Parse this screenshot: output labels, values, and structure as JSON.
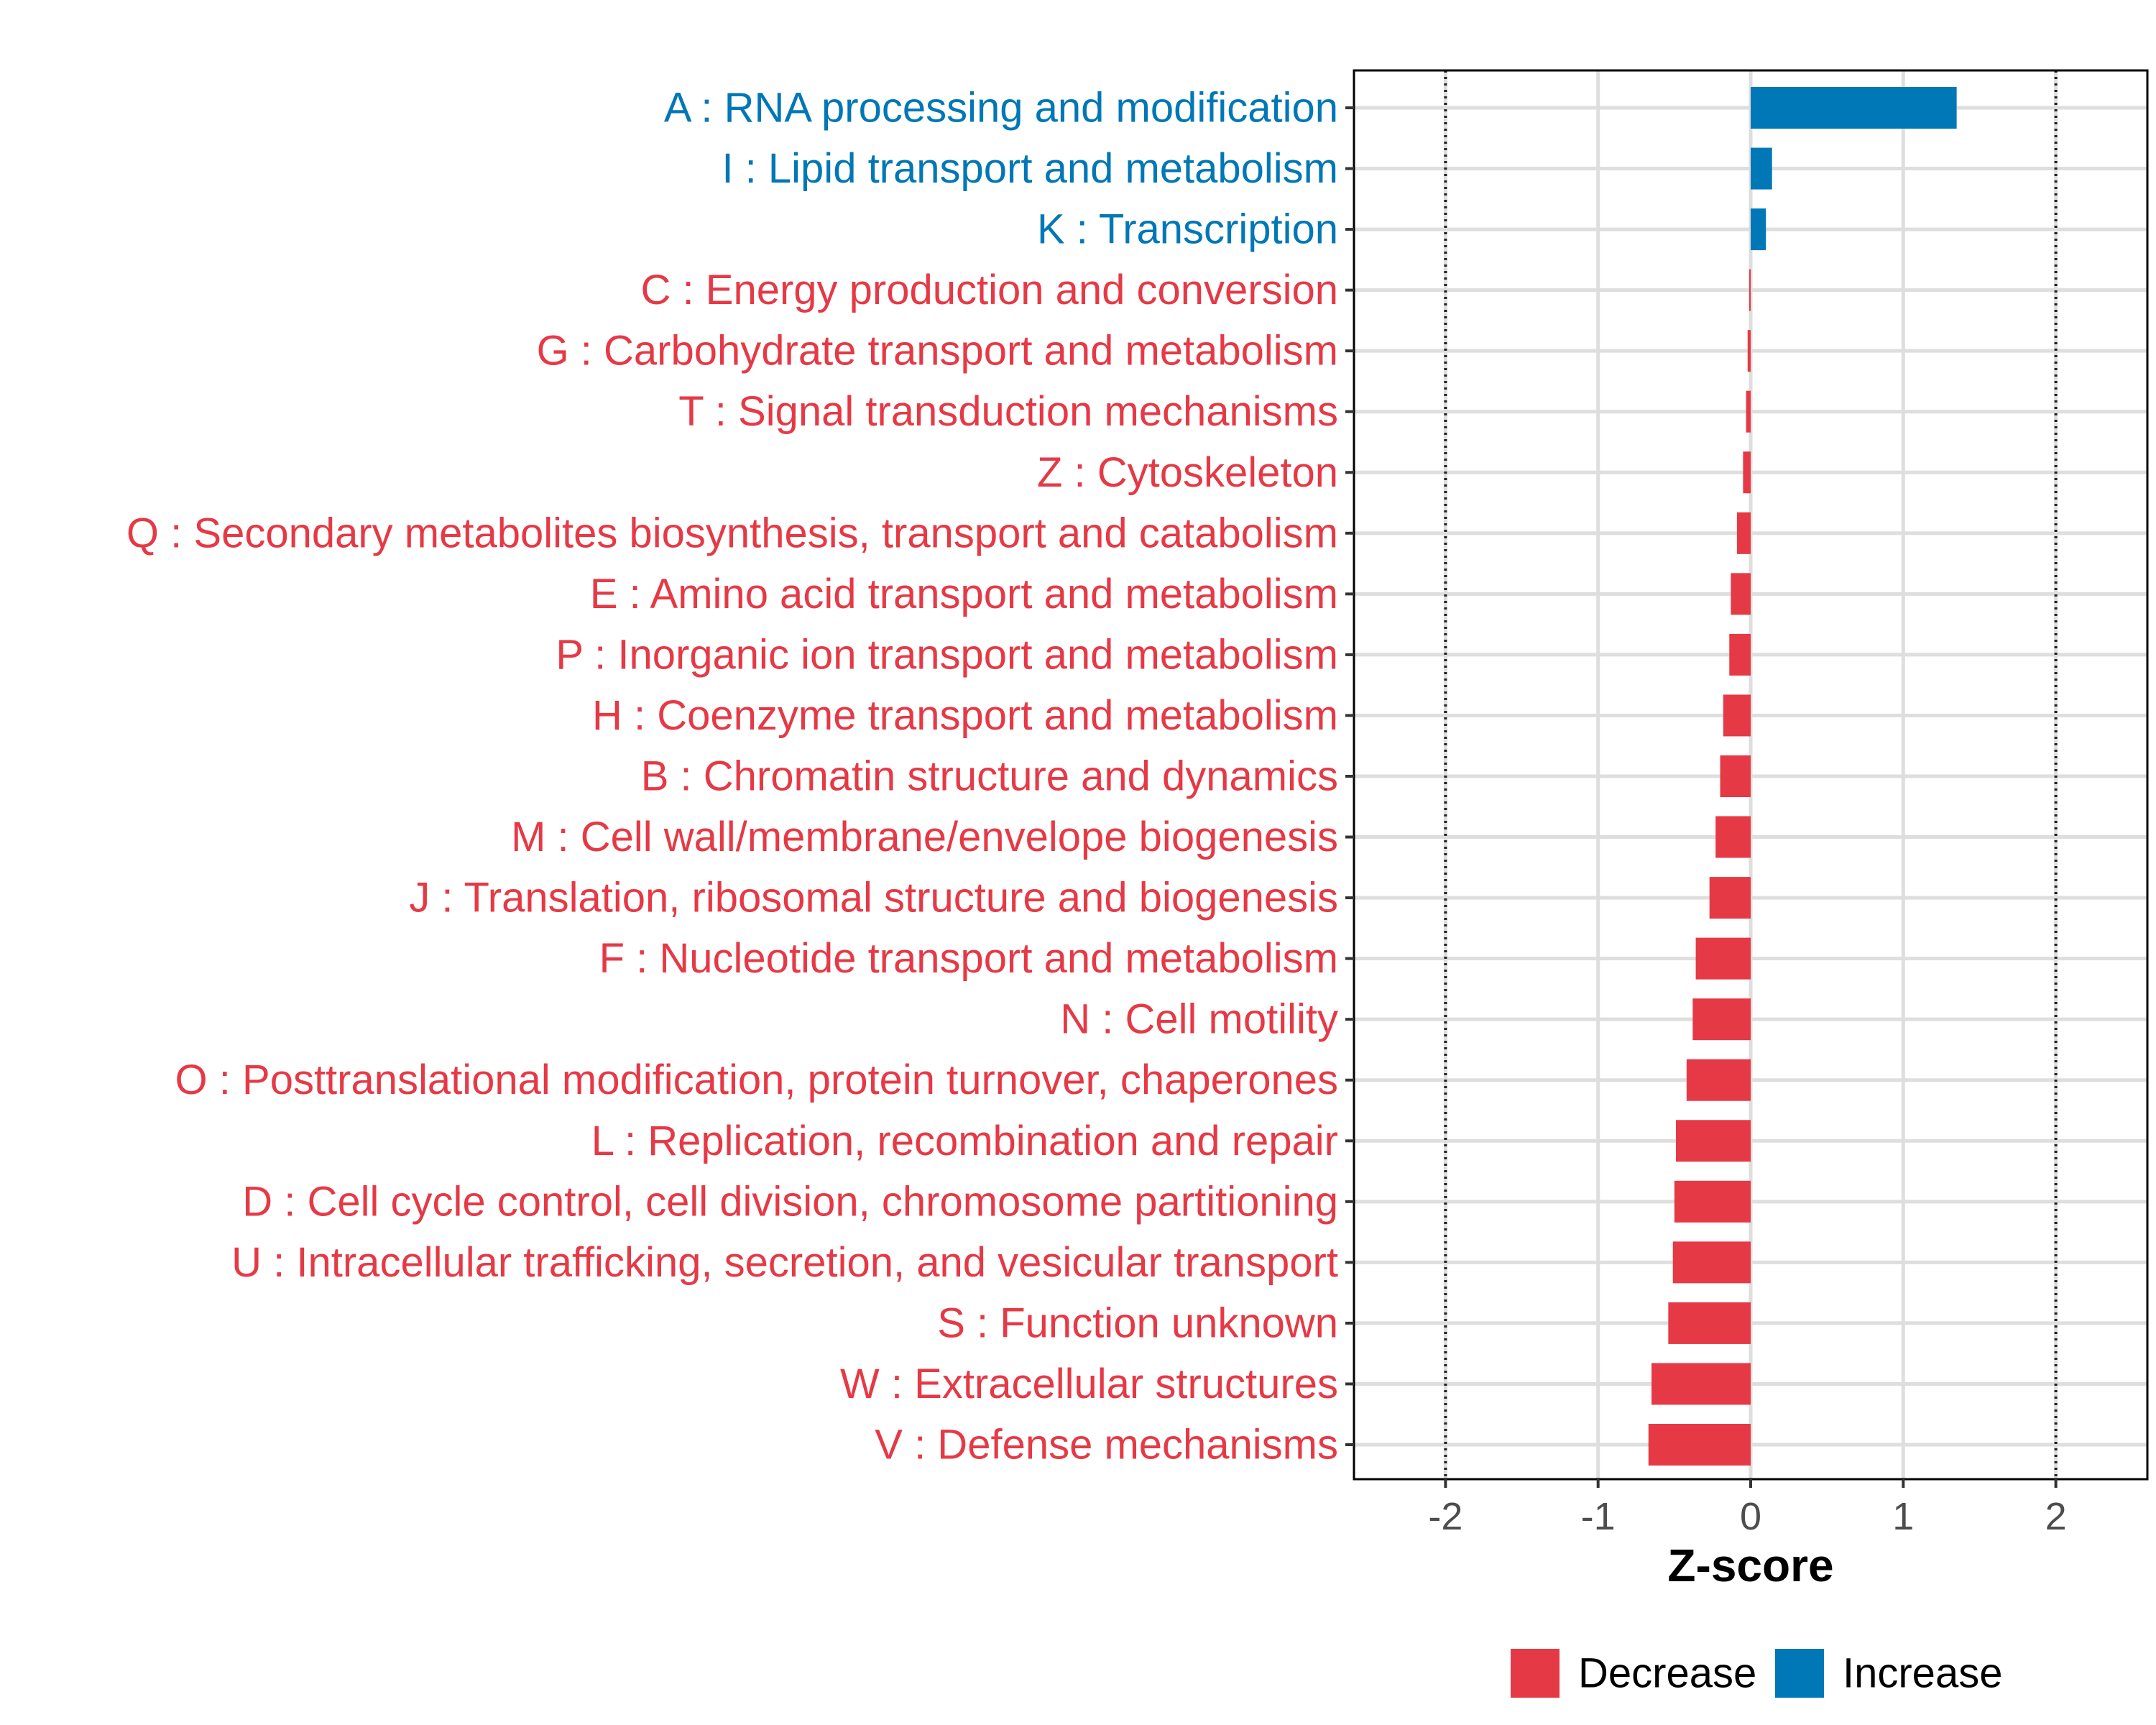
{
  "chart_data": {
    "type": "bar",
    "orientation": "horizontal",
    "xlabel": "Z-score",
    "xlim": [
      -2.6,
      2.6
    ],
    "xticks": [
      -2,
      -1,
      0,
      1,
      2
    ],
    "xtick_labels": [
      "-2",
      "-1",
      "0",
      "1",
      "2"
    ],
    "reference_lines": [
      -2,
      2
    ],
    "grid": true,
    "legend_position": "bottom-right",
    "colors": {
      "Decrease": "#e63946",
      "Increase": "#0077b6"
    },
    "legend": [
      {
        "name": "Decrease",
        "color": "#e63946"
      },
      {
        "name": "Increase",
        "color": "#0077b6"
      }
    ],
    "categories": [
      "A : RNA processing and modification",
      "I : Lipid transport and metabolism",
      "K : Transcription",
      "C : Energy production and conversion",
      "G : Carbohydrate transport and metabolism",
      "T : Signal transduction mechanisms",
      "Z : Cytoskeleton",
      "Q : Secondary metabolites biosynthesis, transport and catabolism",
      "E : Amino acid transport and metabolism",
      "P : Inorganic ion transport and metabolism",
      "H : Coenzyme transport and metabolism",
      "B : Chromatin structure and dynamics",
      "M : Cell wall/membrane/envelope biogenesis",
      "J : Translation, ribosomal structure and biogenesis",
      "F : Nucleotide transport and metabolism",
      "N : Cell motility",
      "O : Posttranslational modification, protein turnover, chaperones",
      "L : Replication, recombination and repair",
      "D : Cell cycle control, cell division, chromosome partitioning",
      "U : Intracellular trafficking, secretion, and vesicular transport",
      "S : Function unknown",
      "W : Extracellular structures",
      "V : Defense mechanisms"
    ],
    "values": [
      1.35,
      0.14,
      0.1,
      -0.01,
      -0.02,
      -0.03,
      -0.05,
      -0.09,
      -0.13,
      -0.14,
      -0.18,
      -0.2,
      -0.23,
      -0.27,
      -0.36,
      -0.38,
      -0.42,
      -0.49,
      -0.5,
      -0.51,
      -0.54,
      -0.65,
      -0.67
    ],
    "groups": [
      "Increase",
      "Increase",
      "Increase",
      "Decrease",
      "Decrease",
      "Decrease",
      "Decrease",
      "Decrease",
      "Decrease",
      "Decrease",
      "Decrease",
      "Decrease",
      "Decrease",
      "Decrease",
      "Decrease",
      "Decrease",
      "Decrease",
      "Decrease",
      "Decrease",
      "Decrease",
      "Decrease",
      "Decrease",
      "Decrease"
    ]
  }
}
